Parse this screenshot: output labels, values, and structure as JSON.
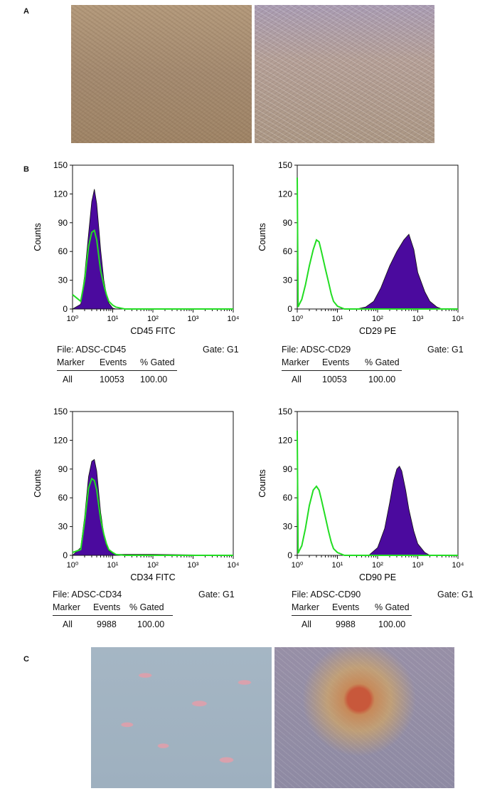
{
  "panels": {
    "a": "A",
    "b": "B",
    "c": "C"
  },
  "image_a": {
    "left_color": "#a48a70",
    "right_color": "#b49f96"
  },
  "image_c": {
    "left_color": "#9eb0bf",
    "right_color": "#8e8aa3",
    "left_stain_color": "#d9a1ad",
    "right_stain_color": "#c8583b"
  },
  "histograms": [
    {
      "id": "cd45",
      "xlabel": "CD45 FITC",
      "ylabel": "Counts",
      "file": "File: ADSC-CD45",
      "gate": "Gate: G1",
      "headers": [
        "Marker",
        "Events",
        "% Gated"
      ],
      "row": [
        "All",
        "10053",
        "100.00"
      ],
      "fill_color": "#4b0a9e",
      "line_color": "#22dd22",
      "chart_data": {
        "type": "area",
        "x_scale": "log",
        "xlim": [
          1,
          10000
        ],
        "ylim": [
          0,
          150
        ],
        "x_ticks": [
          "10⁰",
          "10¹",
          "10²",
          "10³",
          "10⁴"
        ],
        "y_ticks": [
          0,
          30,
          60,
          90,
          120,
          150
        ],
        "series": [
          {
            "x": [
              1,
              1.6,
              2,
              2.5,
              3,
              3.5,
              4,
              4.5,
              5,
              6,
              7,
              8,
              10,
              12,
              100,
              10000
            ],
            "values": [
              0,
              5,
              35,
              78,
              112,
              125,
              110,
              85,
              62,
              30,
              15,
              6,
              1,
              0,
              0,
              0
            ]
          },
          {
            "x": [
              1,
              1.6,
              2,
              2.5,
              3,
              3.5,
              4,
              4.5,
              5,
              6,
              7,
              8,
              10,
              12,
              20,
              10000
            ],
            "values": [
              15,
              8,
              30,
              65,
              80,
              82,
              72,
              55,
              40,
              25,
              15,
              8,
              4,
              2,
              0,
              0
            ]
          }
        ]
      }
    },
    {
      "id": "cd29",
      "xlabel": "CD29 PE",
      "ylabel": "Counts",
      "file": "File: ADSC-CD29",
      "gate": "Gate: G1",
      "headers": [
        "Marker",
        "Events",
        "% Gated"
      ],
      "row": [
        "All",
        "10053",
        "100.00"
      ],
      "fill_color": "#4b0a9e",
      "line_color": "#22dd22",
      "chart_data": {
        "type": "area",
        "x_scale": "log",
        "xlim": [
          1,
          10000
        ],
        "ylim": [
          0,
          150
        ],
        "x_ticks": [
          "10⁰",
          "10¹",
          "10²",
          "10³",
          "10⁴"
        ],
        "y_ticks": [
          0,
          30,
          60,
          90,
          120,
          150
        ],
        "series": [
          {
            "x": [
              1,
              30,
              50,
              80,
              120,
              200,
              300,
              450,
              600,
              800,
              1000,
              1500,
              2000,
              3000,
              4000,
              10000
            ],
            "values": [
              0,
              0,
              2,
              8,
              22,
              45,
              60,
              72,
              78,
              62,
              38,
              18,
              8,
              2,
              0,
              0
            ]
          },
          {
            "x": [
              1,
              1.05,
              1.1,
              1.3,
              1.6,
              2,
              2.5,
              3,
              3.5,
              4,
              5,
              6,
              7,
              8,
              10,
              15,
              10000
            ],
            "values": [
              137,
              2,
              4,
              10,
              25,
              45,
              62,
              72,
              70,
              60,
              42,
              28,
              16,
              8,
              3,
              0,
              0
            ]
          }
        ]
      }
    },
    {
      "id": "cd34",
      "xlabel": "CD34 FITC",
      "ylabel": "Counts",
      "file": "File: ADSC-CD34",
      "gate": "Gate: G1",
      "headers": [
        "Marker",
        "Events",
        "% Gated"
      ],
      "row": [
        "All",
        "9988",
        "100.00"
      ],
      "fill_color": "#4b0a9e",
      "line_color": "#22dd22",
      "chart_data": {
        "type": "area",
        "x_scale": "log",
        "xlim": [
          1,
          10000
        ],
        "ylim": [
          0,
          150
        ],
        "x_ticks": [
          "10⁰",
          "10¹",
          "10²",
          "10³",
          "10⁴"
        ],
        "y_ticks": [
          0,
          30,
          60,
          90,
          120,
          150
        ],
        "series": [
          {
            "x": [
              1,
              1.6,
              2,
              2.5,
              3,
              3.5,
              4,
              4.5,
              5,
              6,
              7,
              8,
              10,
              12,
              100,
              10000
            ],
            "values": [
              0,
              8,
              40,
              82,
              98,
              100,
              88,
              65,
              45,
              22,
              10,
              5,
              2,
              1,
              1,
              0
            ]
          },
          {
            "x": [
              1,
              1.6,
              2,
              2.5,
              3,
              3.5,
              4,
              4.5,
              5,
              6,
              7,
              8,
              10,
              12,
              20,
              10000
            ],
            "values": [
              3,
              6,
              35,
              70,
              80,
              78,
              68,
              52,
              38,
              22,
              12,
              6,
              3,
              1,
              0,
              0
            ]
          }
        ]
      }
    },
    {
      "id": "cd90",
      "xlabel": "CD90 PE",
      "ylabel": "Counts",
      "file": "File: ADSC-CD90",
      "gate": "Gate: G1",
      "headers": [
        "Marker",
        "Events",
        "% Gated"
      ],
      "row": [
        "All",
        "9988",
        "100.00"
      ],
      "fill_color": "#4b0a9e",
      "line_color": "#22dd22",
      "chart_data": {
        "type": "area",
        "x_scale": "log",
        "xlim": [
          1,
          10000
        ],
        "ylim": [
          0,
          150
        ],
        "x_ticks": [
          "10⁰",
          "10¹",
          "10²",
          "10³",
          "10⁴"
        ],
        "y_ticks": [
          0,
          30,
          60,
          90,
          120,
          150
        ],
        "series": [
          {
            "x": [
              1,
              60,
              100,
              150,
              200,
              250,
              300,
              350,
              400,
              500,
              600,
              800,
              1000,
              1500,
              2000,
              10000
            ],
            "values": [
              0,
              0,
              8,
              28,
              55,
              78,
              90,
              93,
              88,
              68,
              48,
              25,
              12,
              3,
              0,
              0
            ]
          },
          {
            "x": [
              1,
              1.05,
              1.1,
              1.3,
              1.6,
              2,
              2.5,
              3,
              3.5,
              4,
              5,
              6,
              7,
              8,
              10,
              15,
              10000
            ],
            "values": [
              130,
              2,
              4,
              10,
              28,
              52,
              68,
              72,
              68,
              58,
              40,
              25,
              14,
              7,
              3,
              0,
              0
            ]
          }
        ]
      }
    }
  ]
}
